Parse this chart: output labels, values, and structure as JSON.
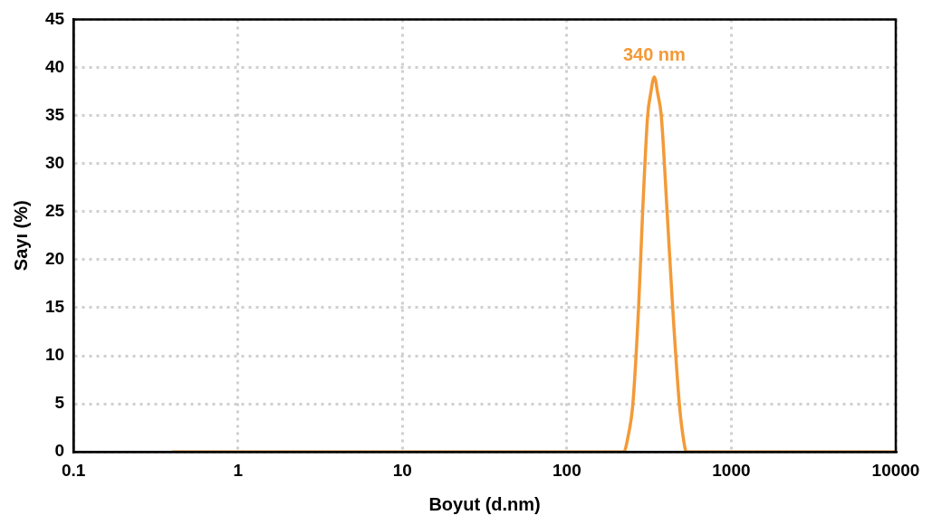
{
  "chart_data": {
    "type": "line",
    "xlabel": "Boyut (d.nm)",
    "ylabel": "Sayı (%)",
    "log": "x",
    "grid": true,
    "marker": "none",
    "line_style": "solid",
    "xlim": [
      0.1,
      10000
    ],
    "xticks": [
      0.1,
      1,
      10,
      100,
      1000,
      10000
    ],
    "ylim": [
      0,
      45
    ],
    "yticks": [
      0,
      5,
      10,
      15,
      20,
      25,
      30,
      35,
      40,
      45
    ],
    "series": [
      {
        "color": "#f39a37",
        "x": [
          0.4,
          222,
          235,
          252,
          273,
          289,
          310,
          325,
          333,
          340,
          347,
          355,
          375,
          407,
          440,
          483,
          510,
          533,
          10000
        ],
        "values": [
          0,
          0,
          1.5,
          5,
          15,
          25,
          35,
          37.5,
          38.6,
          39,
          38.6,
          37.5,
          35,
          25,
          15,
          5,
          1.5,
          0,
          0
        ]
      }
    ],
    "annotations": [
      {
        "text": "340 nm",
        "x": 340,
        "y": 39
      }
    ]
  }
}
